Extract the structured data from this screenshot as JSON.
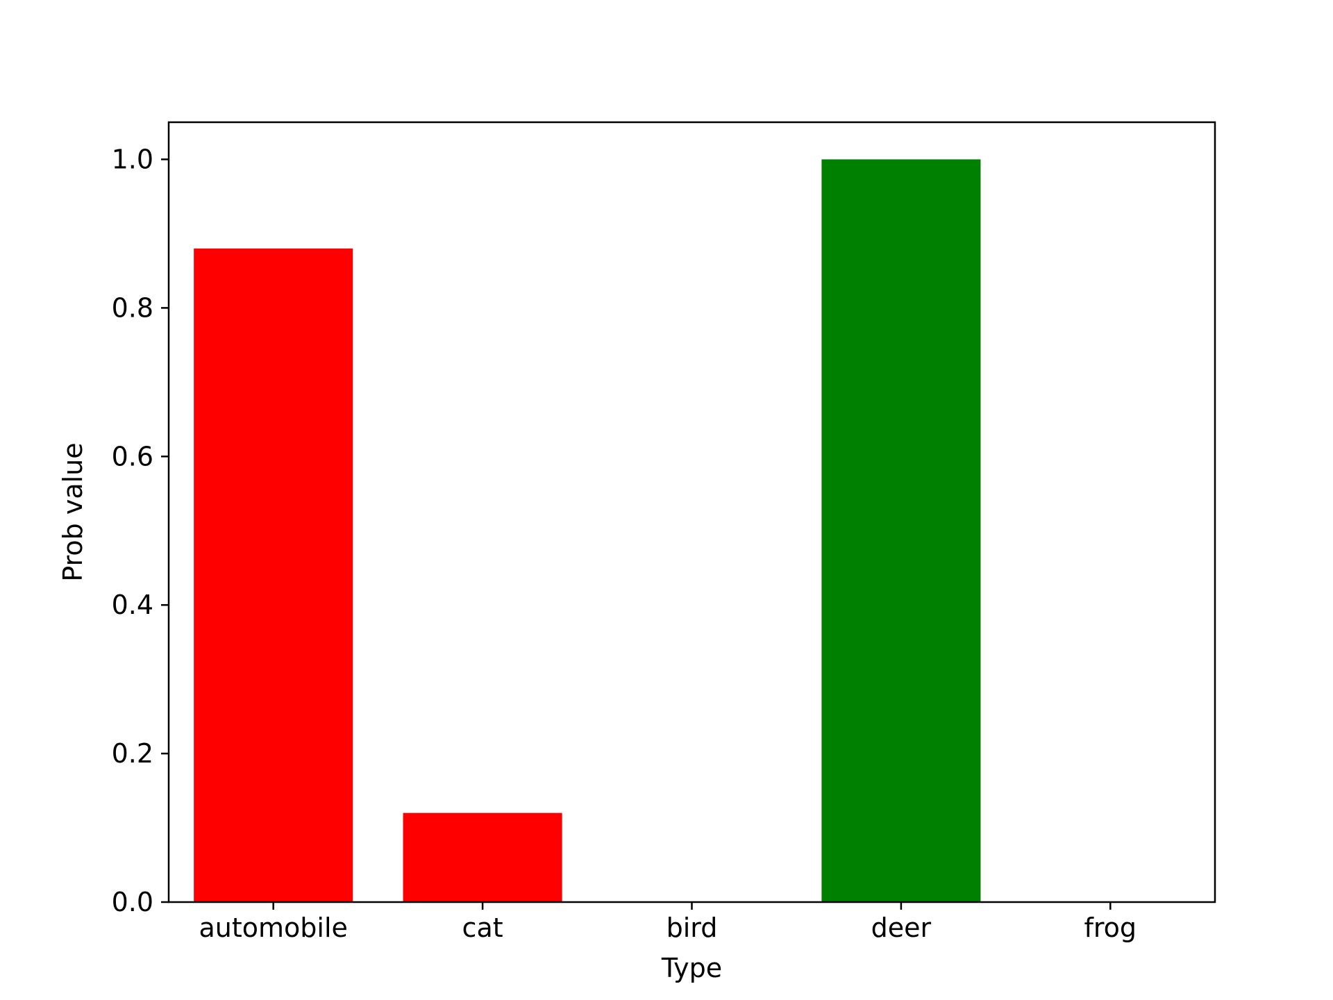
{
  "chart_data": {
    "type": "bar",
    "title": "",
    "xlabel": "Type",
    "ylabel": "Prob value",
    "categories": [
      "automobile",
      "cat",
      "bird",
      "deer",
      "frog"
    ],
    "values": [
      0.88,
      0.12,
      0.0,
      1.0,
      0.0
    ],
    "bar_colors": [
      "#ff0000",
      "#ff0000",
      "#ff0000",
      "#008000",
      "#ff0000"
    ],
    "ylim": [
      0,
      1.05
    ],
    "yticks": [
      0.0,
      0.2,
      0.4,
      0.6,
      0.8,
      1.0
    ],
    "ytick_labels": [
      "0.0",
      "0.2",
      "0.4",
      "0.6",
      "0.8",
      "1.0"
    ],
    "grid": false,
    "legend": "none"
  }
}
